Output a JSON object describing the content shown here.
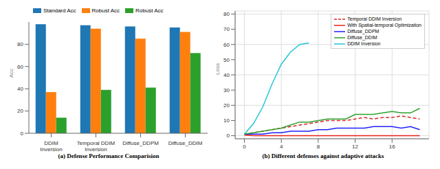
{
  "chart_data": [
    {
      "type": "bar",
      "title": "(a) Defense Performance Comparision",
      "y_label": "Acc",
      "categories": [
        "DDIM Inversion",
        "Temporal DDIM Inversion",
        "Diffuse_DDPM",
        "Diffuse_DDIM"
      ],
      "series": [
        {
          "name": "Standard Acc",
          "color": "#1f77b4",
          "values": [
            98,
            97,
            96,
            95
          ]
        },
        {
          "name": "Robust Acc",
          "color": "#ff7f0e",
          "values": [
            37,
            94,
            85,
            91
          ]
        },
        {
          "name": "Robust Acc",
          "color": "#2ca02c",
          "values": [
            14,
            39,
            41,
            72
          ]
        }
      ],
      "ylim": [
        0,
        100
      ],
      "yticks": [
        0,
        20,
        40,
        60,
        80
      ],
      "grid": false,
      "legend": "top"
    },
    {
      "type": "line",
      "title": "(b) Different defenses against adaptive attacks",
      "y_label": "Loss",
      "x": [
        0,
        1,
        2,
        3,
        4,
        5,
        6,
        7,
        8,
        9,
        10,
        11,
        12,
        13,
        14,
        15,
        16,
        17,
        18,
        19
      ],
      "series": [
        {
          "name": "Temporal DDIM Inversion",
          "color": "#d62728",
          "line_style": "dashed",
          "values": [
            1,
            2,
            3,
            4,
            5,
            6,
            7,
            8,
            9,
            10,
            10,
            10,
            11,
            12,
            11,
            12,
            12,
            13,
            12,
            11
          ]
        },
        {
          "name": "With Spatial-temporal Optimization",
          "color": "#e8201a",
          "line_style": "solid",
          "values": [
            0.5,
            0,
            0,
            0,
            0,
            0,
            0,
            0,
            0,
            0,
            0,
            0,
            0,
            0,
            0,
            0,
            0,
            0,
            0,
            0
          ]
        },
        {
          "name": "Diffuse_DDPM",
          "color": "#1f1fff",
          "line_style": "solid",
          "values": [
            1,
            1,
            1,
            2,
            2,
            3,
            3,
            3,
            4,
            4,
            5,
            5,
            5,
            5,
            6,
            6,
            6,
            5,
            6,
            4
          ]
        },
        {
          "name": "Diffuse_DDIM",
          "color": "#2ca02c",
          "line_style": "solid",
          "values": [
            1,
            2,
            3,
            4,
            5,
            7,
            9,
            9,
            10,
            11,
            11,
            11,
            14,
            14,
            14,
            15,
            16,
            15,
            15,
            18
          ]
        },
        {
          "name": "DDIM Inversion",
          "color": "#22c5d6",
          "line_style": "solid",
          "values": [
            1,
            8,
            19,
            34,
            47,
            55,
            60,
            61,
            null,
            null,
            null,
            null,
            null,
            null,
            null,
            null,
            null,
            null,
            null,
            null
          ]
        }
      ],
      "xlim": [
        -1,
        20
      ],
      "xticks": [
        0,
        4,
        8,
        12,
        16
      ],
      "ylim": [
        -2,
        82
      ],
      "yticks": [
        0,
        10,
        20,
        30,
        40,
        50,
        60,
        70,
        80
      ],
      "grid": true,
      "legend": "upper right"
    }
  ]
}
